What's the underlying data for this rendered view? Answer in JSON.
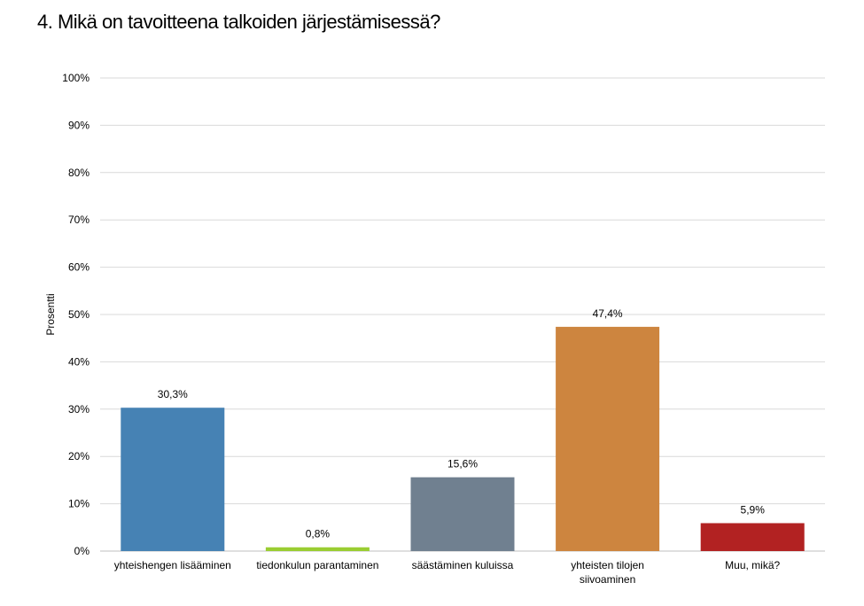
{
  "title": "4. Mikä on tavoitteena talkoiden järjestämisessä?",
  "chart_data": {
    "type": "bar",
    "title": "4. Mikä on tavoitteena talkoiden järjestämisessä?",
    "ylabel": "Prosentti",
    "xlabel": "",
    "ylim": [
      0,
      100
    ],
    "yticks": [
      "0%",
      "10%",
      "20%",
      "30%",
      "40%",
      "50%",
      "60%",
      "70%",
      "80%",
      "90%",
      "100%"
    ],
    "grid": true,
    "categories": [
      [
        "yhteishengen lisääminen"
      ],
      [
        "tiedonkulun parantaminen"
      ],
      [
        "säästäminen kuluissa"
      ],
      [
        "yhteisten tilojen",
        "siivoaminen"
      ],
      [
        "Muu, mikä?"
      ]
    ],
    "values": [
      30.3,
      0.8,
      15.6,
      47.4,
      5.9
    ],
    "data_labels": [
      "30,3%",
      "0,8%",
      "15,6%",
      "47,4%",
      "5,9%"
    ],
    "colors": [
      "#4682B4",
      "#9ACD32",
      "#708090",
      "#CD853F",
      "#B22222"
    ]
  }
}
